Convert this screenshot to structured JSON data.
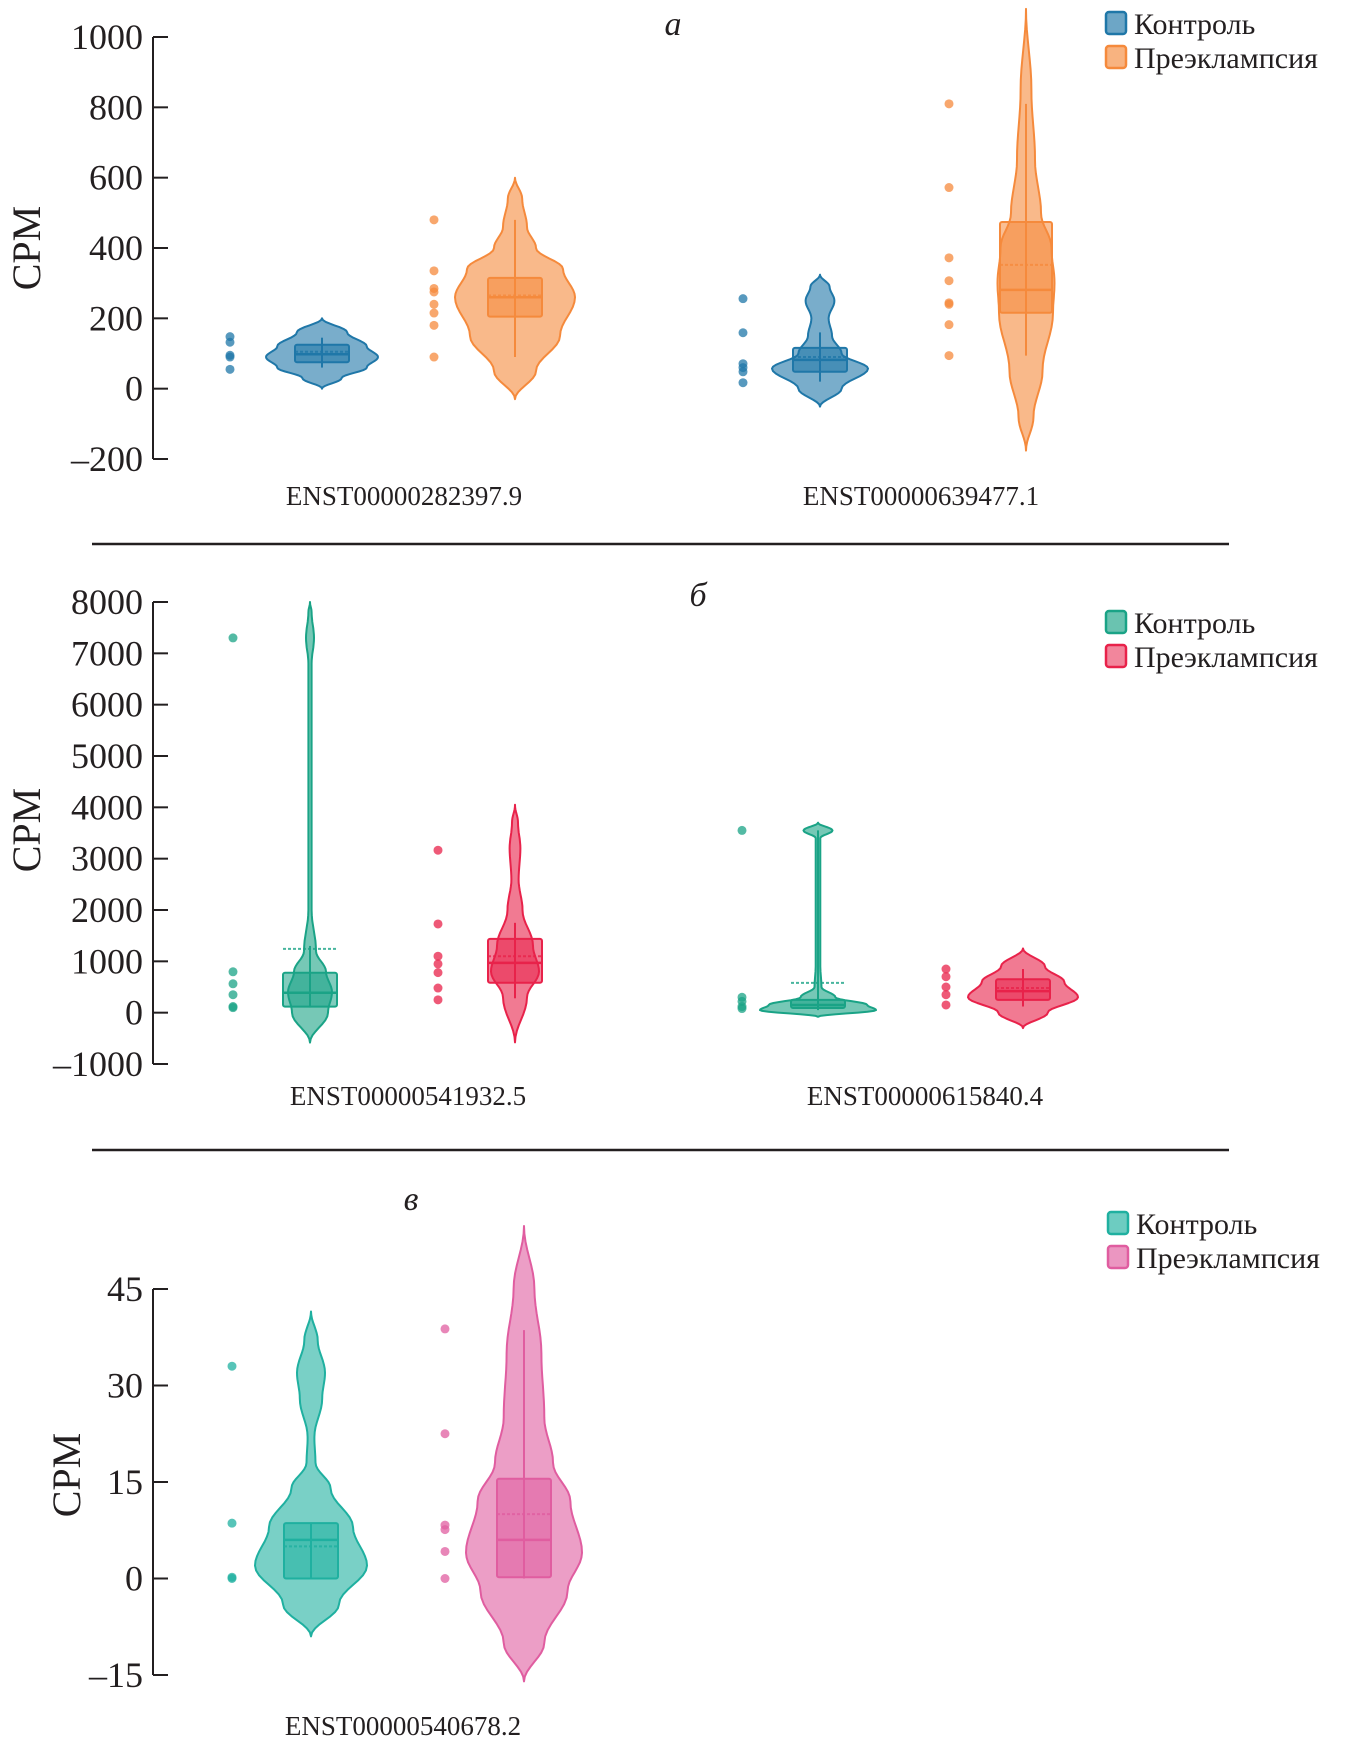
{
  "chart_data": [
    {
      "type": "violin",
      "panel_label": "а",
      "ylabel": "CPM",
      "ylim": [
        -200,
        1000
      ],
      "yticks": [
        1000,
        800,
        600,
        400,
        200,
        0,
        -200
      ],
      "ytick_labels": [
        "1000",
        "800",
        "600",
        "400",
        "200",
        "0",
        "–200"
      ],
      "legend": {
        "placement": "top-right",
        "entries": [
          {
            "label": "Контроль",
            "color": "#1f77a8"
          },
          {
            "label": "Преэклампсия",
            "color": "#f58a3c"
          }
        ]
      },
      "categories": [
        "ENST00000282397.9",
        "ENST00000639477.1"
      ],
      "series": [
        {
          "category": "ENST00000282397.9",
          "group": "Контроль",
          "color": "#1f77a8",
          "violin": [
            [
              0,
              0
            ],
            [
              30,
              0.35
            ],
            [
              60,
              0.8
            ],
            [
              90,
              1.0
            ],
            [
              120,
              0.8
            ],
            [
              160,
              0.45
            ],
            [
              200,
              0
            ]
          ],
          "violin_halfwidth_units": 1.0,
          "box": {
            "q1": 75,
            "median": 98,
            "q3": 125,
            "mean": 105,
            "whisker_low": 60,
            "whisker_high": 145
          },
          "points": [
            148,
            132,
            95,
            90,
            55
          ]
        },
        {
          "category": "ENST00000282397.9",
          "group": "Преэклампсия",
          "color": "#f58a3c",
          "violin": [
            [
              -30,
              0
            ],
            [
              50,
              0.35
            ],
            [
              150,
              0.75
            ],
            [
              260,
              1.0
            ],
            [
              340,
              0.8
            ],
            [
              400,
              0.35
            ],
            [
              460,
              0.2
            ],
            [
              540,
              0.12
            ],
            [
              600,
              0
            ]
          ],
          "violin_halfwidth_units": 1.0,
          "box": {
            "q1": 205,
            "median": 260,
            "q3": 315,
            "mean": 265,
            "whisker_low": 90,
            "whisker_high": 480
          },
          "points": [
            480,
            335,
            285,
            275,
            240,
            215,
            180,
            90
          ]
        },
        {
          "category": "ENST00000639477.1",
          "group": "Контроль",
          "color": "#1f77a8",
          "violin": [
            [
              -51,
              0
            ],
            [
              0,
              0.45
            ],
            [
              57,
              1.0
            ],
            [
              100,
              0.45
            ],
            [
              150,
              0.25
            ],
            [
              200,
              0.18
            ],
            [
              250,
              0.3
            ],
            [
              290,
              0.2
            ],
            [
              324,
              0
            ]
          ],
          "violin_halfwidth_units": 1.0,
          "box": {
            "q1": 48,
            "median": 82,
            "q3": 116,
            "mean": 90,
            "whisker_low": 20,
            "whisker_high": 160
          },
          "points": [
            256,
            159,
            71,
            60,
            48,
            17
          ]
        },
        {
          "category": "ENST00000639477.1",
          "group": "Преэклампсия",
          "color": "#f58a3c",
          "violin": [
            [
              -176,
              0
            ],
            [
              -80,
              0.25
            ],
            [
              50,
              0.55
            ],
            [
              216,
              0.9
            ],
            [
              300,
              0.95
            ],
            [
              400,
              0.85
            ],
            [
              500,
              0.5
            ],
            [
              650,
              0.3
            ],
            [
              850,
              0.18
            ],
            [
              1080,
              0
            ]
          ],
          "violin_halfwidth_units": 1.0,
          "box": {
            "q1": 216,
            "median": 281,
            "q3": 474,
            "mean": 352,
            "whisker_low": 94,
            "whisker_high": 810
          },
          "points": [
            810,
            572,
            372,
            307,
            244,
            240,
            182,
            94
          ]
        }
      ]
    },
    {
      "type": "violin",
      "panel_label": "б",
      "ylabel": "CPM",
      "ylim": [
        -1000,
        8000
      ],
      "yticks": [
        8000,
        7000,
        6000,
        5000,
        4000,
        3000,
        2000,
        1000,
        0,
        -1000
      ],
      "ytick_labels": [
        "8000",
        "7000",
        "6000",
        "5000",
        "4000",
        "3000",
        "2000",
        "1000",
        "0",
        "–1000"
      ],
      "legend": {
        "placement": "top-right",
        "entries": [
          {
            "label": "Контроль",
            "color": "#1aa386"
          },
          {
            "label": "Преэклампсия",
            "color": "#e8224a"
          }
        ]
      },
      "categories": [
        "ENST00000541932.5",
        "ENST00000615840.4"
      ],
      "series": [
        {
          "category": "ENST00000541932.5",
          "group": "Контроль",
          "color": "#1aa386",
          "violin": [
            [
              -583,
              0
            ],
            [
              0,
              0.45
            ],
            [
              400,
              0.55
            ],
            [
              800,
              0.4
            ],
            [
              1200,
              0.15
            ],
            [
              2000,
              0.04
            ],
            [
              6800,
              0.04
            ],
            [
              7300,
              0.1
            ],
            [
              7800,
              0.04
            ],
            [
              8000,
              0
            ]
          ],
          "violin_halfwidth_units": 1.0,
          "box": {
            "q1": 117,
            "median": 388,
            "q3": 777,
            "mean": 1243,
            "whisker_low": 100,
            "whisker_high": 1300
          },
          "points": [
            7300,
            796,
            563,
            350,
            120,
            97
          ]
        },
        {
          "category": "ENST00000541932.5",
          "group": "Преэклампсия",
          "color": "#e8224a",
          "violin": [
            [
              -580,
              0
            ],
            [
              300,
              0.4
            ],
            [
              800,
              0.8
            ],
            [
              1300,
              0.6
            ],
            [
              2000,
              0.25
            ],
            [
              2600,
              0.12
            ],
            [
              3200,
              0.18
            ],
            [
              3700,
              0.1
            ],
            [
              4050,
              0
            ]
          ],
          "violin_halfwidth_units": 1.0,
          "box": {
            "q1": 583,
            "median": 971,
            "q3": 1437,
            "mean": 1100,
            "whisker_low": 280,
            "whisker_high": 1750
          },
          "points": [
            3165,
            1728,
            1100,
            950,
            780,
            480,
            250
          ]
        },
        {
          "category": "ENST00000615840.4",
          "group": "Контроль",
          "color": "#1aa386",
          "violin": [
            [
              -80,
              0
            ],
            [
              50,
              1.0
            ],
            [
              150,
              0.85
            ],
            [
              300,
              0.3
            ],
            [
              500,
              0.06
            ],
            [
              900,
              0.04
            ],
            [
              3400,
              0.04
            ],
            [
              3550,
              0.25
            ],
            [
              3700,
              0
            ]
          ],
          "violin_halfwidth_units": 1.0,
          "box": {
            "q1": 90,
            "median": 150,
            "q3": 250,
            "mean": 580,
            "whisker_low": 50,
            "whisker_high": 3550
          },
          "points": [
            3550,
            300,
            220,
            120,
            80
          ]
        },
        {
          "category": "ENST00000615840.4",
          "group": "Преэклампсия",
          "color": "#e8224a",
          "violin": [
            [
              -300,
              0
            ],
            [
              0,
              0.45
            ],
            [
              300,
              1.0
            ],
            [
              600,
              0.75
            ],
            [
              900,
              0.4
            ],
            [
              1250,
              0
            ]
          ],
          "violin_halfwidth_units": 1.0,
          "box": {
            "q1": 250,
            "median": 420,
            "q3": 650,
            "mean": 480,
            "whisker_low": 120,
            "whisker_high": 850
          },
          "points": [
            850,
            700,
            500,
            350,
            150
          ]
        }
      ]
    },
    {
      "type": "violin",
      "panel_label": "в",
      "ylabel": "CPM",
      "ylim": [
        -15,
        45
      ],
      "yticks": [
        45,
        30,
        15,
        0,
        -15
      ],
      "ytick_labels": [
        "45",
        "30",
        "15",
        "0",
        "–15"
      ],
      "legend": {
        "placement": "top-right",
        "entries": [
          {
            "label": "Контроль",
            "color": "#1fb0a0"
          },
          {
            "label": "Преэклампсия",
            "color": "#e05da0"
          }
        ]
      },
      "categories": [
        "ENST00000540678.2"
      ],
      "series": [
        {
          "category": "ENST00000540678.2",
          "group": "Контроль",
          "color": "#1fb0a0",
          "violin": [
            [
              -9,
              0
            ],
            [
              -4,
              0.5
            ],
            [
              2,
              1.0
            ],
            [
              8,
              0.75
            ],
            [
              14,
              0.35
            ],
            [
              18,
              0.08
            ],
            [
              22,
              0.06
            ],
            [
              28,
              0.2
            ],
            [
              32,
              0.25
            ],
            [
              37,
              0.12
            ],
            [
              41.5,
              0
            ]
          ],
          "violin_halfwidth_units": 1.0,
          "box": {
            "q1": 0,
            "median": 6,
            "q3": 8.6,
            "mean": 5,
            "whisker_low": 0,
            "whisker_high": 8.6
          },
          "points": [
            33,
            8.6,
            0.2,
            0
          ]
        },
        {
          "category": "ENST00000540678.2",
          "group": "Преэклампсия",
          "color": "#e05da0",
          "violin": [
            [
              -16,
              0
            ],
            [
              -10,
              0.35
            ],
            [
              -2,
              0.75
            ],
            [
              4,
              1.0
            ],
            [
              12,
              0.8
            ],
            [
              18,
              0.5
            ],
            [
              25,
              0.35
            ],
            [
              35,
              0.3
            ],
            [
              45,
              0.18
            ],
            [
              54.8,
              0
            ]
          ],
          "violin_halfwidth_units": 1.0,
          "box": {
            "q1": 0.2,
            "median": 6,
            "q3": 15.5,
            "mean": 10,
            "whisker_low": 0,
            "whisker_high": 38.6
          },
          "points": [
            38.8,
            22.5,
            8.3,
            7.6,
            4.2,
            0
          ]
        }
      ]
    }
  ]
}
